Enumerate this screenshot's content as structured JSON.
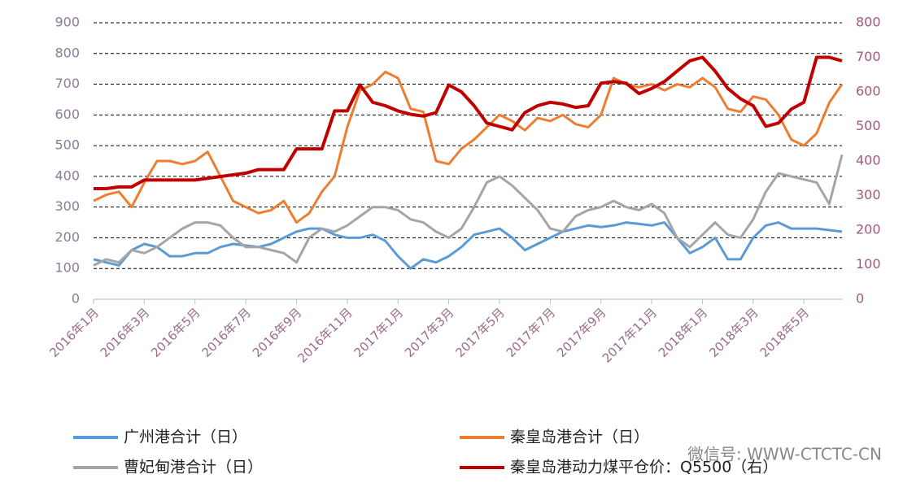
{
  "chart_data": {
    "type": "line",
    "annotation": "微信号: WWW-CTCTC-CN",
    "categories": [
      "2016年1月",
      null,
      null,
      null,
      "2016年3月",
      null,
      null,
      null,
      "2016年5月",
      null,
      null,
      null,
      "2016年7月",
      null,
      null,
      null,
      "2016年9月",
      null,
      null,
      null,
      "2016年11月",
      null,
      null,
      null,
      "2017年1月",
      null,
      null,
      null,
      "2017年3月",
      null,
      null,
      null,
      "2017年5月",
      null,
      null,
      null,
      "2017年7月",
      null,
      null,
      null,
      "2017年9月",
      null,
      null,
      null,
      "2017年11月",
      null,
      null,
      null,
      "2018年1月",
      null,
      null,
      null,
      "2018年3月",
      null,
      null,
      null,
      "2018年5月",
      null,
      null,
      null
    ],
    "ylim": [
      0,
      900
    ],
    "yticks": [
      0,
      100,
      200,
      300,
      400,
      500,
      600,
      700,
      800,
      900
    ],
    "y2lim": [
      0,
      800
    ],
    "y2ticks": [
      0,
      100,
      200,
      300,
      400,
      500,
      600,
      700,
      800
    ],
    "grid": true,
    "series": [
      {
        "name": "广州港合计（日）",
        "color": "#5b9bd5",
        "values": [
          130,
          120,
          110,
          160,
          180,
          170,
          140,
          140,
          150,
          150,
          170,
          180,
          175,
          170,
          180,
          200,
          220,
          230,
          230,
          210,
          200,
          200,
          210,
          190,
          140,
          100,
          130,
          120,
          140,
          170,
          210,
          220,
          230,
          200,
          160,
          180,
          200,
          220,
          230,
          240,
          235,
          240,
          250,
          245,
          240,
          250,
          200,
          150,
          170,
          200,
          130,
          130,
          200,
          240,
          250,
          230,
          230,
          230,
          225,
          220
        ]
      },
      {
        "name": "秦皇岛港合计（日）",
        "color": "#ed7d31",
        "values": [
          320,
          340,
          350,
          300,
          380,
          450,
          450,
          440,
          450,
          480,
          400,
          320,
          300,
          280,
          290,
          320,
          250,
          280,
          350,
          400,
          560,
          680,
          700,
          740,
          720,
          620,
          610,
          450,
          440,
          490,
          520,
          560,
          600,
          580,
          550,
          590,
          580,
          600,
          570,
          560,
          600,
          720,
          700,
          690,
          700,
          680,
          700,
          690,
          720,
          690,
          620,
          610,
          660,
          650,
          600,
          520,
          500,
          540,
          640,
          700
        ]
      },
      {
        "name": "曹妃甸港合计（日）",
        "color": "#a5a5a5",
        "values": [
          110,
          130,
          120,
          160,
          150,
          170,
          200,
          230,
          250,
          250,
          240,
          200,
          170,
          170,
          160,
          150,
          120,
          200,
          230,
          220,
          240,
          270,
          300,
          300,
          290,
          260,
          250,
          220,
          200,
          230,
          300,
          380,
          400,
          370,
          330,
          290,
          230,
          220,
          270,
          290,
          300,
          320,
          300,
          290,
          310,
          280,
          200,
          170,
          210,
          250,
          210,
          200,
          260,
          350,
          410,
          400,
          390,
          380,
          310,
          470
        ]
      },
      {
        "name": "秦皇岛港动力煤平仓价：Q5500（右）",
        "color": "#c00000",
        "axis": "y2",
        "values": [
          320,
          320,
          325,
          325,
          345,
          345,
          345,
          345,
          345,
          350,
          355,
          360,
          365,
          375,
          375,
          375,
          435,
          435,
          435,
          545,
          545,
          620,
          570,
          560,
          545,
          535,
          530,
          540,
          620,
          600,
          560,
          510,
          500,
          490,
          540,
          560,
          570,
          565,
          555,
          560,
          625,
          630,
          625,
          595,
          610,
          630,
          660,
          690,
          700,
          660,
          610,
          580,
          560,
          500,
          510,
          550,
          570,
          700,
          700,
          690
        ]
      }
    ]
  }
}
